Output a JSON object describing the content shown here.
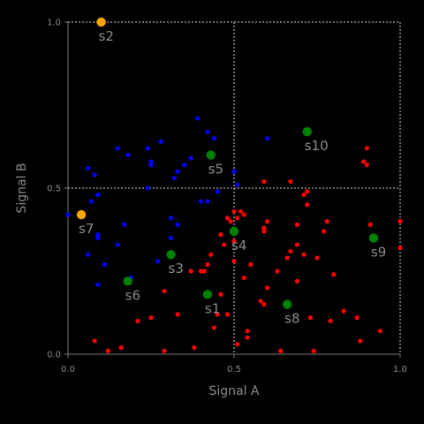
{
  "chart_data": {
    "type": "scatter",
    "title": "",
    "xlabel": "Signal A",
    "ylabel": "Signal B",
    "xlim": [
      0.0,
      1.0
    ],
    "ylim": [
      0.0,
      1.0
    ],
    "xticks": [
      0.0,
      0.5,
      1.0
    ],
    "yticks": [
      0.0,
      0.5,
      1.0
    ],
    "xtick_labels": [
      "0.0",
      "0.5",
      "1.0"
    ],
    "ytick_labels": [
      "0.0",
      "0.5",
      "1.0"
    ],
    "grid": true,
    "background": "#000000",
    "series": [
      {
        "color": "#0000ff",
        "points": [
          [
            0.0,
            0.42
          ],
          [
            0.06,
            0.56
          ],
          [
            0.08,
            0.54
          ],
          [
            0.07,
            0.46
          ],
          [
            0.09,
            0.48
          ],
          [
            0.09,
            0.36
          ],
          [
            0.09,
            0.35
          ],
          [
            0.06,
            0.3
          ],
          [
            0.11,
            0.27
          ],
          [
            0.09,
            0.21
          ],
          [
            0.17,
            0.39
          ],
          [
            0.19,
            0.23
          ],
          [
            0.15,
            0.33
          ],
          [
            0.18,
            0.6
          ],
          [
            0.15,
            0.62
          ],
          [
            0.24,
            0.5
          ],
          [
            0.25,
            0.58
          ],
          [
            0.25,
            0.57
          ],
          [
            0.24,
            0.62
          ],
          [
            0.28,
            0.64
          ],
          [
            0.32,
            0.53
          ],
          [
            0.33,
            0.55
          ],
          [
            0.35,
            0.57
          ],
          [
            0.37,
            0.59
          ],
          [
            0.39,
            0.71
          ],
          [
            0.42,
            0.67
          ],
          [
            0.45,
            0.49
          ],
          [
            0.4,
            0.46
          ],
          [
            0.42,
            0.46
          ],
          [
            0.31,
            0.41
          ],
          [
            0.33,
            0.39
          ],
          [
            0.31,
            0.35
          ],
          [
            0.27,
            0.28
          ],
          [
            0.5,
            0.55
          ],
          [
            0.51,
            0.51
          ],
          [
            0.6,
            0.65
          ],
          [
            0.44,
            0.65
          ]
        ]
      },
      {
        "color": "#ff0000",
        "points": [
          [
            0.08,
            0.04
          ],
          [
            0.12,
            0.01
          ],
          [
            0.16,
            0.02
          ],
          [
            0.21,
            0.1
          ],
          [
            0.25,
            0.11
          ],
          [
            0.29,
            0.19
          ],
          [
            0.29,
            0.01
          ],
          [
            0.33,
            0.12
          ],
          [
            0.37,
            0.25
          ],
          [
            0.4,
            0.25
          ],
          [
            0.41,
            0.25
          ],
          [
            0.42,
            0.27
          ],
          [
            0.43,
            0.3
          ],
          [
            0.44,
            0.08
          ],
          [
            0.45,
            0.12
          ],
          [
            0.46,
            0.18
          ],
          [
            0.46,
            0.36
          ],
          [
            0.47,
            0.33
          ],
          [
            0.48,
            0.12
          ],
          [
            0.48,
            0.41
          ],
          [
            0.49,
            0.4
          ],
          [
            0.5,
            0.34
          ],
          [
            0.5,
            0.28
          ],
          [
            0.5,
            0.43
          ],
          [
            0.51,
            0.41
          ],
          [
            0.51,
            0.03
          ],
          [
            0.52,
            0.43
          ],
          [
            0.53,
            0.42
          ],
          [
            0.53,
            0.23
          ],
          [
            0.54,
            0.07
          ],
          [
            0.54,
            0.05
          ],
          [
            0.55,
            0.27
          ],
          [
            0.58,
            0.16
          ],
          [
            0.59,
            0.15
          ],
          [
            0.6,
            0.2
          ],
          [
            0.6,
            0.4
          ],
          [
            0.59,
            0.38
          ],
          [
            0.59,
            0.52
          ],
          [
            0.59,
            0.37
          ],
          [
            0.63,
            0.25
          ],
          [
            0.64,
            0.01
          ],
          [
            0.66,
            0.29
          ],
          [
            0.67,
            0.31
          ],
          [
            0.67,
            0.52
          ],
          [
            0.69,
            0.39
          ],
          [
            0.69,
            0.33
          ],
          [
            0.69,
            0.22
          ],
          [
            0.71,
            0.3
          ],
          [
            0.71,
            0.48
          ],
          [
            0.72,
            0.49
          ],
          [
            0.72,
            0.45
          ],
          [
            0.73,
            0.11
          ],
          [
            0.74,
            0.01
          ],
          [
            0.75,
            0.29
          ],
          [
            0.77,
            0.37
          ],
          [
            0.78,
            0.4
          ],
          [
            0.79,
            0.1
          ],
          [
            0.8,
            0.24
          ],
          [
            0.83,
            0.13
          ],
          [
            0.87,
            0.11
          ],
          [
            0.88,
            0.04
          ],
          [
            0.89,
            0.58
          ],
          [
            0.9,
            0.57
          ],
          [
            0.9,
            0.62
          ],
          [
            0.91,
            0.39
          ],
          [
            0.94,
            0.07
          ],
          [
            1.0,
            0.4
          ],
          [
            1.0,
            0.32
          ],
          [
            0.38,
            0.02
          ]
        ]
      }
    ],
    "highlights": [
      {
        "label": "s1",
        "x": 0.42,
        "y": 0.18,
        "color": "#008000"
      },
      {
        "label": "s2",
        "x": 0.1,
        "y": 1.0,
        "color": "#ffa500"
      },
      {
        "label": "s3",
        "x": 0.31,
        "y": 0.3,
        "color": "#008000"
      },
      {
        "label": "s4",
        "x": 0.5,
        "y": 0.37,
        "color": "#008000"
      },
      {
        "label": "s5",
        "x": 0.43,
        "y": 0.6,
        "color": "#008000"
      },
      {
        "label": "s6",
        "x": 0.18,
        "y": 0.22,
        "color": "#008000"
      },
      {
        "label": "s7",
        "x": 0.04,
        "y": 0.42,
        "color": "#ffa500"
      },
      {
        "label": "s8",
        "x": 0.66,
        "y": 0.15,
        "color": "#008000"
      },
      {
        "label": "s9",
        "x": 0.92,
        "y": 0.35,
        "color": "#008000"
      },
      {
        "label": "s10",
        "x": 0.72,
        "y": 0.67,
        "color": "#008000"
      }
    ]
  }
}
